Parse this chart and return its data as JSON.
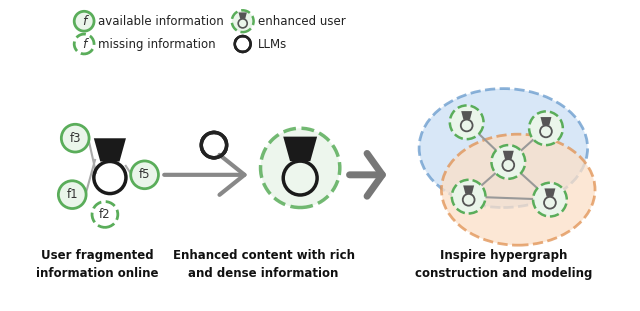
{
  "bg_color": "#ffffff",
  "green_solid": "#5aad5a",
  "green_fill": "#eaf5ea",
  "green_dark": "#3a8a3a",
  "gray_line": "#aaaaaa",
  "gray_arrow": "#888888",
  "blue_fill": "#d0e8f8",
  "blue_edge": "#5599cc",
  "orange_fill": "#fce5d0",
  "orange_edge": "#e8924a",
  "node_gray": "#555555",
  "legend": {
    "avail_label": "available information",
    "missing_label": "missing information",
    "enhanced_label": "enhanced user",
    "llm_label": "LLMs"
  },
  "captions": [
    "User fragmented\ninformation online",
    "Enhanced content with rich\nand dense information",
    "Inspire hypergraph\nconstruction and modeling"
  ]
}
